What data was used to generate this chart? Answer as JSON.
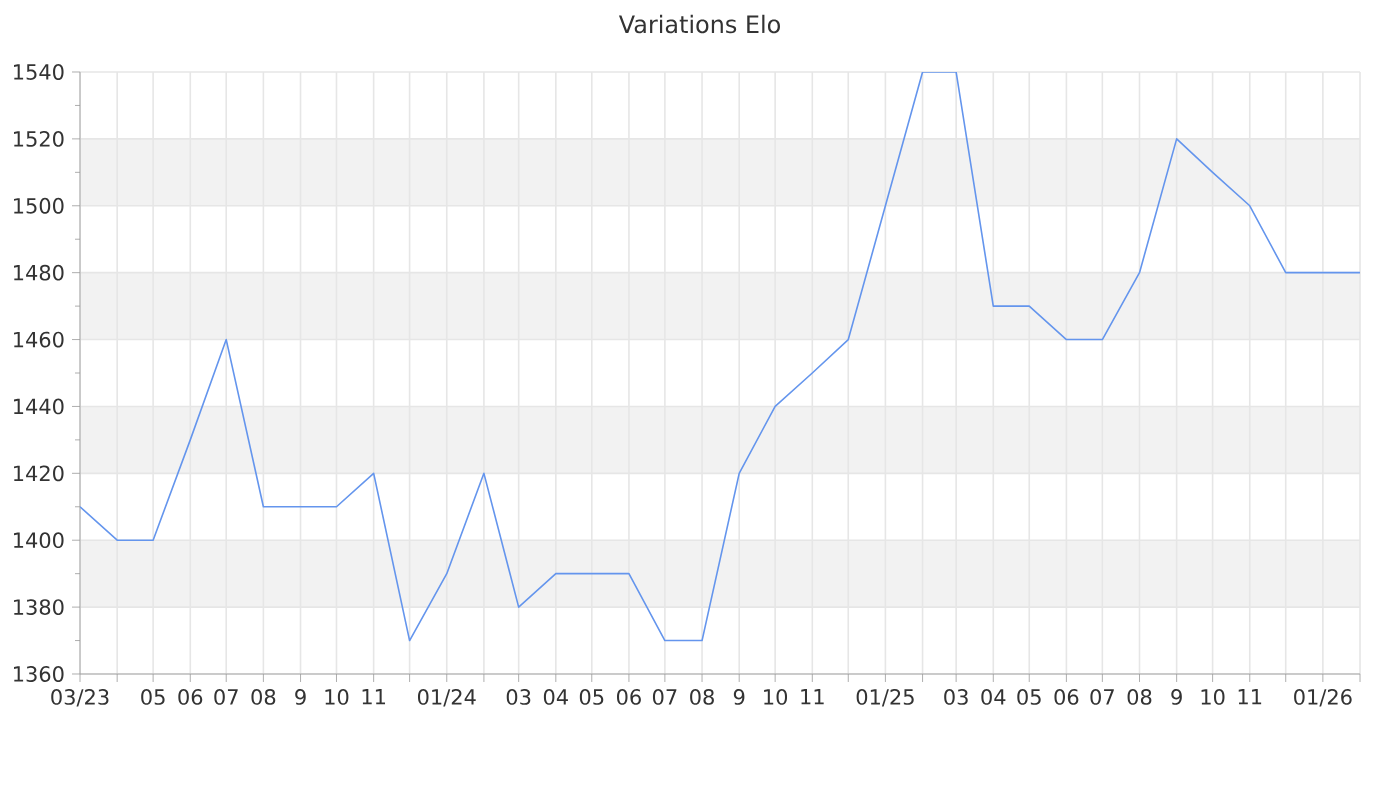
{
  "chart_data": {
    "type": "line",
    "title": "Variations Elo",
    "x": [
      "2023-03",
      "2023-04",
      "2023-05",
      "2023-06",
      "2023-07",
      "2023-08",
      "2023-09",
      "2023-10",
      "2023-11",
      "2023-12",
      "2024-01",
      "2024-02",
      "2024-03",
      "2024-04",
      "2024-05",
      "2024-06",
      "2024-07",
      "2024-08",
      "2024-09",
      "2024-10",
      "2024-11",
      "2024-12",
      "2025-01",
      "2025-02",
      "2025-03",
      "2025-04",
      "2025-05",
      "2025-06",
      "2025-07",
      "2025-08",
      "2025-09",
      "2025-10",
      "2025-11",
      "2025-12",
      "2026-01",
      "2026-02"
    ],
    "series": [
      {
        "color": "#6495ed",
        "values": [
          1410,
          1400,
          1400,
          1430,
          1460,
          1410,
          1410,
          1410,
          1420,
          1370,
          1390,
          1420,
          1380,
          1390,
          1390,
          1390,
          1370,
          1370,
          1420,
          1440,
          1450,
          1460,
          1500,
          1540,
          1540,
          1470,
          1470,
          1460,
          1460,
          1480,
          1520,
          1510,
          1500,
          1480,
          1480,
          1480
        ]
      }
    ],
    "xlim": [
      "2023-03",
      "2026-02"
    ],
    "xticks": [
      {
        "value": "2023-03",
        "label": "03/23"
      },
      {
        "value": "2023-04",
        "label": null
      },
      {
        "value": "2023-05",
        "label": "05"
      },
      {
        "value": "2023-06",
        "label": "06"
      },
      {
        "value": "2023-07",
        "label": "07"
      },
      {
        "value": "2023-08",
        "label": "08"
      },
      {
        "value": "2023-09",
        "label": "9"
      },
      {
        "value": "2023-10",
        "label": "10"
      },
      {
        "value": "2023-11",
        "label": "11"
      },
      {
        "value": "2023-12",
        "label": null
      },
      {
        "value": "2024-01",
        "label": "01/24"
      },
      {
        "value": "2024-02",
        "label": null
      },
      {
        "value": "2024-03",
        "label": "03"
      },
      {
        "value": "2024-04",
        "label": "04"
      },
      {
        "value": "2024-05",
        "label": "05"
      },
      {
        "value": "2024-06",
        "label": "06"
      },
      {
        "value": "2024-07",
        "label": "07"
      },
      {
        "value": "2024-08",
        "label": "08"
      },
      {
        "value": "2024-09",
        "label": "9"
      },
      {
        "value": "2024-10",
        "label": "10"
      },
      {
        "value": "2024-11",
        "label": "11"
      },
      {
        "value": "2024-12",
        "label": null
      },
      {
        "value": "2025-01",
        "label": "01/25"
      },
      {
        "value": "2025-02",
        "label": null
      },
      {
        "value": "2025-03",
        "label": "03"
      },
      {
        "value": "2025-04",
        "label": "04"
      },
      {
        "value": "2025-05",
        "label": "05"
      },
      {
        "value": "2025-06",
        "label": "06"
      },
      {
        "value": "2025-07",
        "label": "07"
      },
      {
        "value": "2025-08",
        "label": "08"
      },
      {
        "value": "2025-09",
        "label": "9"
      },
      {
        "value": "2025-10",
        "label": "10"
      },
      {
        "value": "2025-11",
        "label": "11"
      },
      {
        "value": "2025-12",
        "label": null
      },
      {
        "value": "2026-01",
        "label": "01/26"
      },
      {
        "value": "2026-02",
        "label": null
      }
    ],
    "ylim": [
      1360,
      1540
    ],
    "yticks": [
      1360,
      1380,
      1400,
      1420,
      1440,
      1460,
      1480,
      1500,
      1520,
      1540
    ],
    "grid": true,
    "bands": [
      {
        "axis": "y",
        "from": 1380,
        "to": 1400,
        "color": "#f2f2f2"
      },
      {
        "axis": "y",
        "from": 1420,
        "to": 1440,
        "color": "#f2f2f2"
      },
      {
        "axis": "y",
        "from": 1460,
        "to": 1480,
        "color": "#f2f2f2"
      },
      {
        "axis": "y",
        "from": 1500,
        "to": 1520,
        "color": "#f2f2f2"
      }
    ],
    "marker": "none",
    "line_style": "solid"
  }
}
